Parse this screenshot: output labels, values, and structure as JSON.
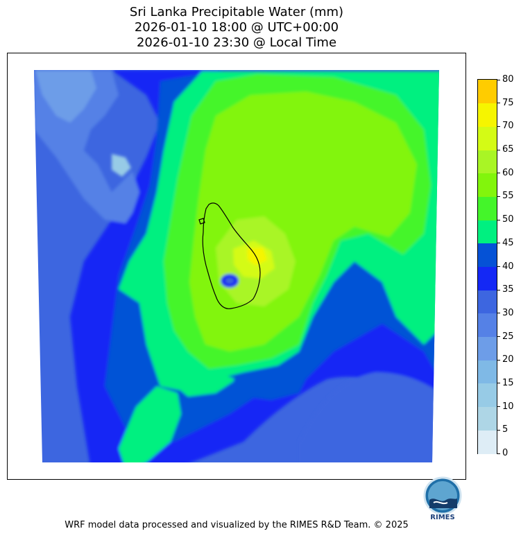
{
  "title": {
    "line1": "Sri Lanka Precipitable Water (mm)",
    "line2": "2026-01-10 18:00 @ UTC+00:00",
    "line3": "2026-01-10 23:30 @ Local Time"
  },
  "colorbar": {
    "levels": [
      0,
      5,
      10,
      15,
      20,
      25,
      30,
      35,
      40,
      45,
      50,
      55,
      60,
      65,
      70,
      75,
      80
    ],
    "labels": [
      "0",
      "5",
      "10",
      "15",
      "20",
      "25",
      "30",
      "35",
      "40",
      "45",
      "50",
      "55",
      "60",
      "65",
      "70",
      "75",
      "80"
    ],
    "colors": [
      "#deedf6",
      "#aed6e6",
      "#97cbe6",
      "#7fb9e6",
      "#6d9de8",
      "#5581e6",
      "#3d66e0",
      "#1428f5",
      "#0552d6",
      "#00f080",
      "#44f52a",
      "#82f50c",
      "#a9f525",
      "#d4fb15",
      "#f6f500",
      "#ffcc00"
    ]
  },
  "footer": "WRF model data processed and visualized by the RIMES R&D Team. © 2025",
  "logo": {
    "text": "RIMES",
    "icon": "rimes-logo-icon"
  }
}
